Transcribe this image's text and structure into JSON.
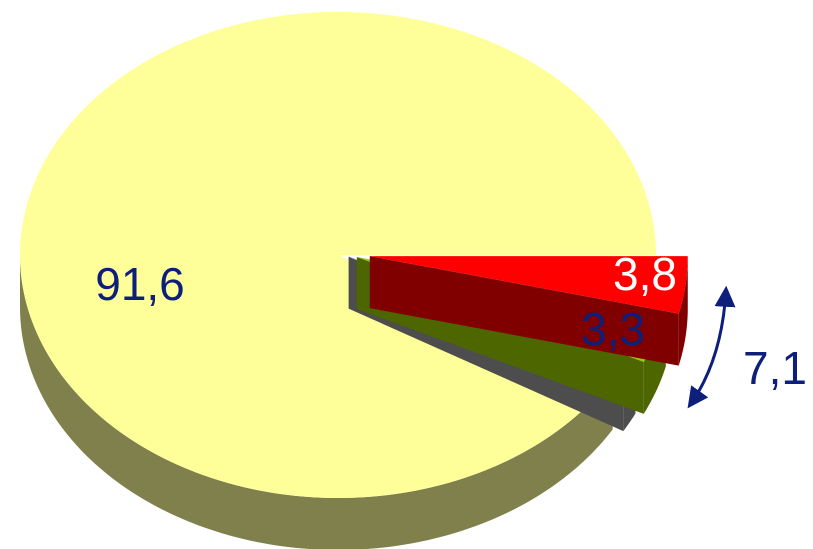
{
  "chart_data": {
    "type": "pie3d",
    "values": [
      3.8,
      3.3,
      1.3,
      91.6
    ],
    "value_labels": [
      "3,8",
      "3,3",
      null,
      "91,6"
    ],
    "colors": [
      "#ff0000",
      "#99cc00",
      "#999999",
      "#ffff99"
    ],
    "annotation": "7,1"
  }
}
